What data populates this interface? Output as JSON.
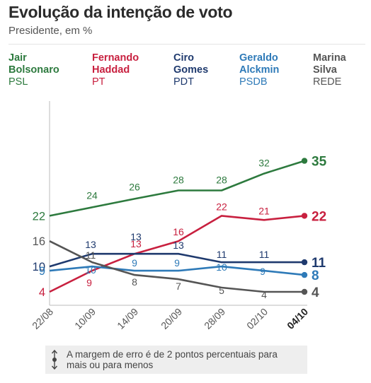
{
  "title": "Evolução da intenção de voto",
  "subtitle": "Presidente, em %",
  "legend": [
    {
      "name_line1": "Jair",
      "name_line2": "Bolsonaro",
      "party": "PSL",
      "color": "#2d7a3e"
    },
    {
      "name_line1": "Fernando",
      "name_line2": "Haddad",
      "party": "PT",
      "color": "#c8203f"
    },
    {
      "name_line1": "Ciro",
      "name_line2": "Gomes",
      "party": "PDT",
      "color": "#1f3a6e"
    },
    {
      "name_line1": "Geraldo",
      "name_line2": "Alckmin",
      "party": "PSDB",
      "color": "#2e7ab8"
    },
    {
      "name_line1": "Marina",
      "name_line2": "Silva",
      "party": "REDE",
      "color": "#555555"
    }
  ],
  "chart_data": {
    "type": "line",
    "title": "Evolução da intenção de voto",
    "subtitle": "Presidente, em %",
    "categories": [
      "22/08",
      "10/09",
      "14/09",
      "20/09",
      "28/09",
      "02/10",
      "04/10"
    ],
    "ylim": [
      4,
      35
    ],
    "grid": false,
    "series": [
      {
        "name": "Jair Bolsonaro",
        "party": "PSL",
        "color": "#2d7a3e",
        "values": [
          22,
          24,
          26,
          28,
          28,
          32,
          35
        ]
      },
      {
        "name": "Fernando Haddad",
        "party": "PT",
        "color": "#c8203f",
        "values": [
          4,
          9,
          13,
          16,
          22,
          21,
          22
        ]
      },
      {
        "name": "Ciro Gomes",
        "party": "PDT",
        "color": "#1f3a6e",
        "values": [
          10,
          13,
          13,
          13,
          11,
          11,
          11
        ]
      },
      {
        "name": "Geraldo Alckmin",
        "party": "PSDB",
        "color": "#2e7ab8",
        "values": [
          9,
          10,
          9,
          9,
          10,
          9,
          8
        ]
      },
      {
        "name": "Marina Silva",
        "party": "REDE",
        "color": "#555555",
        "values": [
          16,
          11,
          8,
          7,
          5,
          4,
          4
        ]
      }
    ]
  },
  "note": {
    "text": "A margem de erro é de 2 pontos percentuais para mais ou para menos"
  }
}
